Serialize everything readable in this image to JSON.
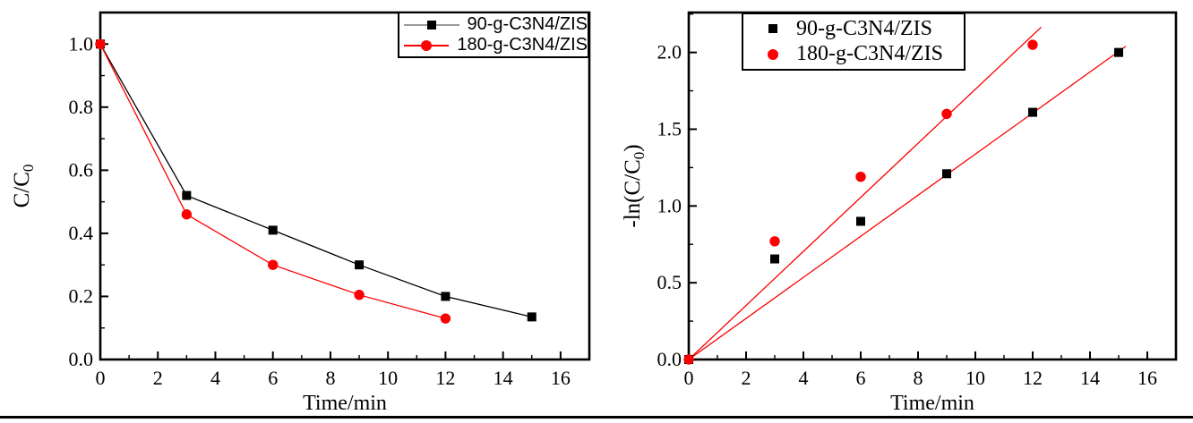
{
  "figure_title": "",
  "colors": {
    "black_series": "#000000",
    "red_series": "#fb0000",
    "legend_black_line": "#9a9a9a",
    "axis": "#000000",
    "background": "#ffffff"
  },
  "chart_data": [
    {
      "id": "left",
      "type": "line",
      "title": "",
      "xlabel": "Time/min",
      "ylabel_pre": "C/C",
      "ylabel_sub": "0",
      "ylabel_post": "",
      "xlim": [
        0,
        17
      ],
      "ylim": [
        0,
        1.1
      ],
      "x_major_step": 2,
      "x_minor_step": 1,
      "x_label_max": 16,
      "y_major_step": 0.2,
      "y_minor_step": 0.1,
      "y_decimals": 1,
      "grid": false,
      "legend_position": "top-right-inside",
      "legend_style": "line-and-marker",
      "series": [
        {
          "name": "90-g-C3N4/ZIS",
          "marker": "square",
          "color": "#000000",
          "line_color": "#000000",
          "legend_line_color": "#9a9a9a",
          "connect": true,
          "x": [
            0,
            3,
            6,
            9,
            12,
            15
          ],
          "y": [
            1.0,
            0.52,
            0.41,
            0.3,
            0.2,
            0.135
          ]
        },
        {
          "name": "180-g-C3N4/ZIS",
          "marker": "circle",
          "color": "#fb0000",
          "line_color": "#fb0000",
          "legend_line_color": "#fb0000",
          "connect": true,
          "x": [
            0,
            3,
            6,
            9,
            12
          ],
          "y": [
            1.0,
            0.46,
            0.3,
            0.205,
            0.13
          ]
        }
      ],
      "fit_lines": []
    },
    {
      "id": "right",
      "type": "scatter",
      "title": "",
      "xlabel": "Time/min",
      "ylabel_pre": "-ln(C/C",
      "ylabel_sub": "0",
      "ylabel_post": ")",
      "xlim": [
        0,
        17
      ],
      "ylim": [
        0,
        2.26
      ],
      "x_major_step": 2,
      "x_minor_step": 1,
      "x_label_max": 16,
      "y_major_step": 0.5,
      "y_minor_step": 0.25,
      "y_decimals": 1,
      "grid": false,
      "legend_position": "top-left-inside",
      "legend_style": "marker-only",
      "series": [
        {
          "name": "90-g-C3N4/ZIS",
          "marker": "square",
          "color": "#000000",
          "line_color": "#000000",
          "legend_line_color": "#9a9a9a",
          "connect": false,
          "x": [
            0,
            3,
            6,
            9,
            12,
            15
          ],
          "y": [
            0,
            0.655,
            0.9,
            1.21,
            1.61,
            2.0
          ]
        },
        {
          "name": "180-g-C3N4/ZIS",
          "marker": "circle",
          "color": "#fb0000",
          "line_color": "#fb0000",
          "legend_line_color": "#fb0000",
          "connect": false,
          "x": [
            0,
            3,
            6,
            9,
            12
          ],
          "y": [
            0,
            0.77,
            1.19,
            1.6,
            2.05
          ]
        }
      ],
      "fit_lines": [
        {
          "color": "#fb0000",
          "x1": 0,
          "y1": 0,
          "x2": 15.25,
          "y2": 2.04
        },
        {
          "color": "#fb0000",
          "x1": 0,
          "y1": 0,
          "x2": 12.3,
          "y2": 2.165
        }
      ]
    }
  ]
}
